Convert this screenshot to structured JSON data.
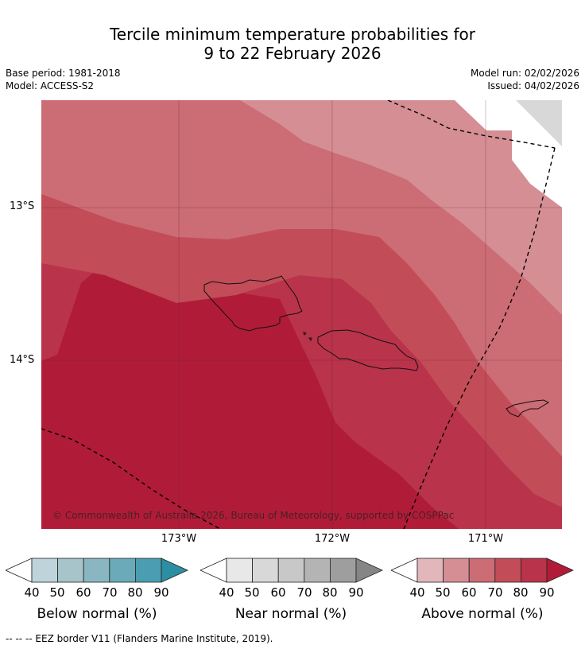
{
  "title_line1": "Tercile minimum temperature probabilities for",
  "title_line2": "9 to 22 February 2026",
  "base_period": "Base period: 1981-2018",
  "model": "Model: ACCESS-S2",
  "model_run": "Model run: 02/02/2026",
  "issued": "Issued: 04/02/2026",
  "latitudes": [
    "13°S",
    "14°S"
  ],
  "longitudes": [
    "173°W",
    "172°W",
    "171°W"
  ],
  "copyright": "© Commonwealth of Australia 2026, Bureau of Meteorology, supported by COSPPac",
  "colorbars": [
    {
      "label": "Below normal (%)",
      "ticks": [
        "40",
        "50",
        "60",
        "70",
        "80",
        "90"
      ],
      "colors": [
        "#bed4da",
        "#a6c4ca",
        "#8ab6c2",
        "#6aaab9",
        "#4b9db1",
        "#2b8ea3"
      ]
    },
    {
      "label": "Near normal (%)",
      "ticks": [
        "40",
        "50",
        "60",
        "70",
        "80",
        "90"
      ],
      "colors": [
        "#e8e8e8",
        "#d8d8d8",
        "#c8c8c8",
        "#b4b4b4",
        "#9e9e9e",
        "#858585"
      ]
    },
    {
      "label": "Above normal (%)",
      "ticks": [
        "40",
        "50",
        "60",
        "70",
        "80",
        "90"
      ],
      "colors": [
        "#e2b7bc",
        "#d48e94",
        "#cc6c74",
        "#c24c58",
        "#b9334a",
        "#b01c38"
      ]
    }
  ],
  "footnote": "-- -- -- EEZ border V11 (Flanders Marine Institute, 2019).",
  "map_colors": {
    "p50": "#d48e94",
    "p60": "#cc6c74",
    "p70": "#c24c58",
    "p80": "#b9334a",
    "p90": "#b01c38",
    "no_data": "#d8d8d8"
  }
}
